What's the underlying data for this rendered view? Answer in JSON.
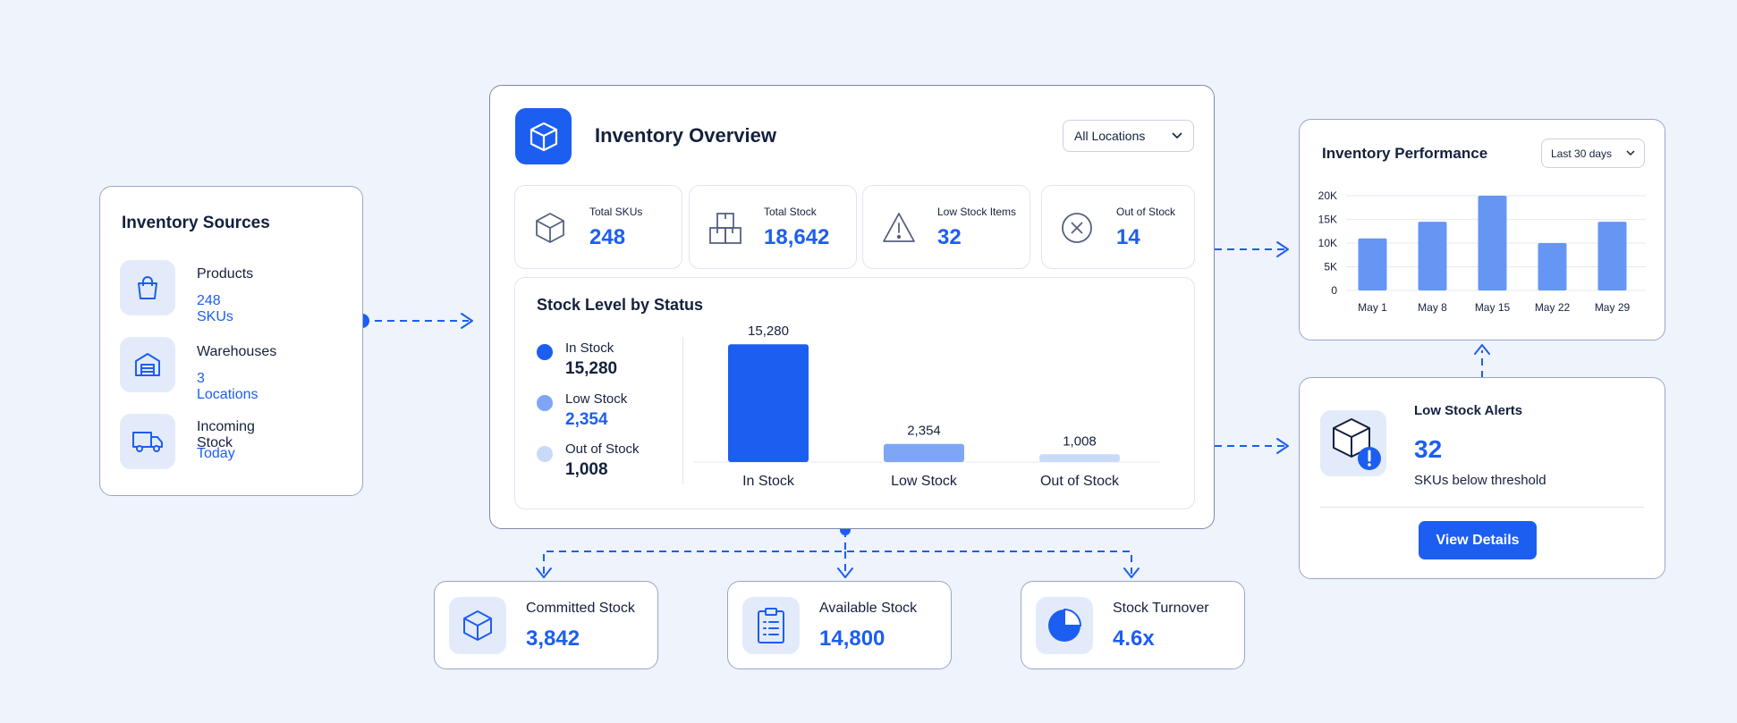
{
  "sources": {
    "title": "Inventory Sources",
    "items": [
      {
        "label": "Products",
        "value": "248 SKUs",
        "icon": "shopping-bag-icon"
      },
      {
        "label": "Warehouses",
        "value": "3 Locations",
        "icon": "warehouse-icon"
      },
      {
        "label": "Incoming Stock",
        "value": "Today",
        "icon": "truck-icon"
      }
    ]
  },
  "overview": {
    "title": "Inventory Overview",
    "location_select": "All Locations",
    "kpis": [
      {
        "label": "Total SKUs",
        "value": "248",
        "icon": "box-icon"
      },
      {
        "label": "Total Stock",
        "value": "18,642",
        "icon": "stacked-boxes-icon"
      },
      {
        "label": "Low Stock Items",
        "value": "32",
        "icon": "warning-icon"
      },
      {
        "label": "Out of Stock",
        "value": "14",
        "icon": "x-circle-icon"
      }
    ],
    "status_chart": {
      "title": "Stock Level by Status",
      "legend": [
        {
          "label": "In Stock",
          "value": "15,280"
        },
        {
          "label": "Low Stock",
          "value": "2,354"
        },
        {
          "label": "Out of Stock",
          "value": "1,008"
        }
      ]
    }
  },
  "performance": {
    "title": "Inventory Performance",
    "range_select": "Last 30 days"
  },
  "alerts": {
    "title": "Low Stock Alerts",
    "count": "32",
    "subtitle": "SKUs below threshold",
    "button": "View Details"
  },
  "bottom": [
    {
      "label": "Committed Stock",
      "value": "3,842",
      "icon": "box-icon"
    },
    {
      "label": "Available Stock",
      "value": "14,800",
      "icon": "clipboard-list-icon"
    },
    {
      "label": "Stock Turnover",
      "value": "4.6x",
      "icon": "pie-chart-icon"
    }
  ],
  "colors": {
    "accent": "#1c5ef0",
    "mid": "#7fa6f6",
    "light": "#c9daf9",
    "perf_bar": "#6596f3"
  },
  "chart_data": [
    {
      "type": "bar",
      "title": "Stock Level by Status",
      "categories": [
        "In Stock",
        "Low Stock",
        "Out of Stock"
      ],
      "values": [
        15280,
        2354,
        1008
      ],
      "data_labels": [
        "15,280",
        "2,354",
        "1,008"
      ],
      "colors": [
        "#1c5ef0",
        "#7fa6f6",
        "#c9daf9"
      ],
      "ylim": [
        0,
        16000
      ],
      "grid": false
    },
    {
      "type": "bar",
      "title": "Inventory Performance",
      "categories": [
        "May 1",
        "May 8",
        "May 15",
        "May 22",
        "May 29"
      ],
      "values": [
        11000,
        14500,
        20000,
        10000,
        14500
      ],
      "yticks": [
        0,
        5000,
        10000,
        15000,
        20000
      ],
      "ytick_labels": [
        "0",
        "5K",
        "10K",
        "15K",
        "20K"
      ],
      "ylim": [
        0,
        20000
      ],
      "grid": true
    }
  ]
}
